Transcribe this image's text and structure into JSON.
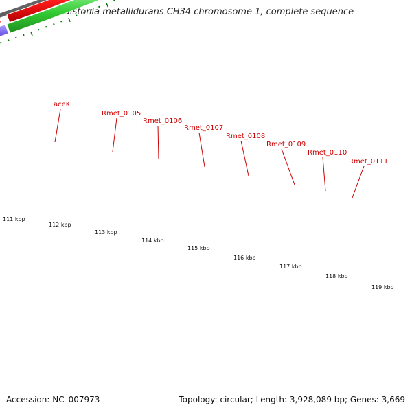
{
  "title": "Ralstonia metallidurans CH34 chromosome 1, complete sequence",
  "footer": {
    "accession": "Accession: NC_007973",
    "topology": "Topology: circular; Length: 3,928,089 bp; Genes: 3,669"
  },
  "colors": {
    "cds_arrow": "#ff0000",
    "gene_green": "#33cc33",
    "gene_slate": "#5544aa",
    "gene_lavender": "#7b68ee",
    "gene_navy": "#000080",
    "gene_grey": "#b0b0b0",
    "gene_dark_grey": "#6a6a6a",
    "label": "#cc0000",
    "tick": "#007700"
  },
  "gene_labels": [
    "aceK",
    "Rmet_0105",
    "Rmet_0106",
    "Rmet_0107",
    "Rmet_0108",
    "Rmet_0109",
    "Rmet_0110",
    "Rmet_0111"
  ],
  "kbp_labels": [
    "111 kbp",
    "112 kbp",
    "113 kbp",
    "114 kbp",
    "115 kbp",
    "116 kbp",
    "117 kbp",
    "118 kbp",
    "119 kbp"
  ]
}
